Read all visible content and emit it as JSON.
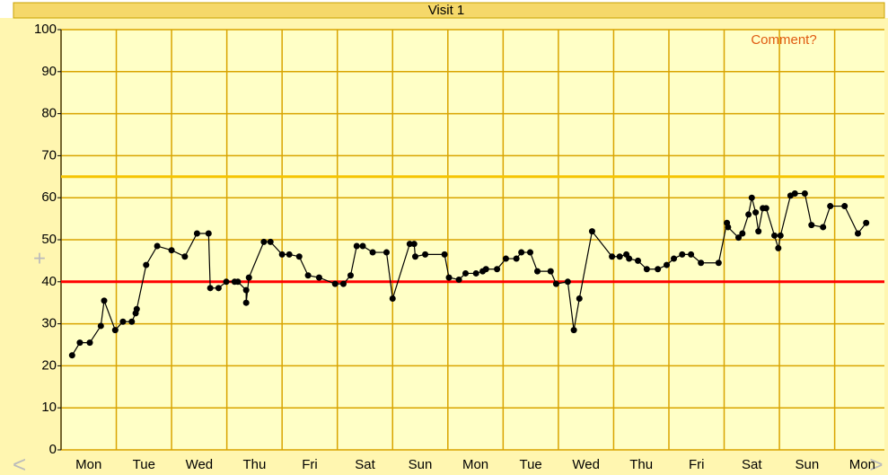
{
  "chart_data": {
    "type": "line",
    "title": "Visit 1",
    "annotation": "Comment?",
    "annotation_color": "#e05a10",
    "series": [
      {
        "color": "#000000",
        "x": [
          0.2,
          0.34,
          0.52,
          0.72,
          0.78,
          0.98,
          1.12,
          1.28,
          1.35,
          1.37,
          1.54,
          1.74,
          2.0,
          2.24,
          2.46,
          2.67,
          2.7,
          2.85,
          2.99,
          3.14,
          3.2,
          3.35,
          3.35,
          3.4,
          3.67,
          3.79,
          4.0,
          4.13,
          4.31,
          4.47,
          4.67,
          4.96,
          5.11,
          5.24,
          5.35,
          5.46,
          5.64,
          5.89,
          6.0,
          6.31,
          6.39,
          6.41,
          6.59,
          6.94,
          7.02,
          7.2,
          7.32,
          7.51,
          7.63,
          7.69,
          7.89,
          8.05,
          8.24,
          8.33,
          8.49,
          8.62,
          8.86,
          8.96,
          9.17,
          9.28,
          9.38,
          9.61,
          9.97,
          10.11,
          10.23,
          10.28,
          10.44,
          10.6,
          10.8,
          10.96,
          11.09,
          11.24,
          11.4,
          11.58,
          11.9,
          12.05,
          12.07,
          12.26,
          12.33,
          12.44,
          12.5,
          12.57,
          12.62,
          12.7,
          12.76,
          12.91,
          12.98,
          13.02,
          13.2,
          13.28,
          13.46,
          13.58,
          13.79,
          13.92,
          14.18,
          14.42,
          14.57
        ],
        "values": [
          22.5,
          25.5,
          25.5,
          29.5,
          35.5,
          28.5,
          30.5,
          30.5,
          32.5,
          33.5,
          44,
          48.5,
          47.5,
          46,
          51.5,
          51.5,
          38.5,
          38.5,
          40,
          40,
          40,
          38,
          35,
          41,
          49.5,
          49.5,
          46.5,
          46.5,
          46,
          41.5,
          41,
          39.5,
          39.5,
          41.5,
          48.5,
          48.5,
          47,
          47,
          36,
          49,
          49,
          46,
          46.5,
          46.5,
          41,
          40.5,
          42,
          42,
          42.5,
          43,
          43,
          45.5,
          45.5,
          47,
          47,
          42.5,
          42.5,
          39.5,
          40,
          28.5,
          36,
          52,
          46,
          46,
          46.5,
          45.5,
          45,
          43,
          43,
          44,
          45.5,
          46.5,
          46.5,
          44.5,
          44.5,
          54,
          53,
          50.5,
          51.5,
          56,
          60,
          56.5,
          52,
          57.5,
          57.5,
          51,
          48,
          51,
          60.5,
          61,
          61,
          53.5,
          53,
          58,
          58,
          51.5,
          54
        ]
      }
    ],
    "xlim": [
      0,
      14.9
    ],
    "xticks": [
      {
        "value": 0.5,
        "label": "Mon"
      },
      {
        "value": 1.5,
        "label": "Tue"
      },
      {
        "value": 2.5,
        "label": "Wed"
      },
      {
        "value": 3.5,
        "label": "Thu"
      },
      {
        "value": 4.5,
        "label": "Fri"
      },
      {
        "value": 5.5,
        "label": "Sat"
      },
      {
        "value": 6.5,
        "label": "Sun"
      },
      {
        "value": 7.5,
        "label": "Mon"
      },
      {
        "value": 8.5,
        "label": "Tue"
      },
      {
        "value": 9.5,
        "label": "Wed"
      },
      {
        "value": 10.5,
        "label": "Thu"
      },
      {
        "value": 11.5,
        "label": "Fri"
      },
      {
        "value": 12.5,
        "label": "Sat"
      },
      {
        "value": 13.5,
        "label": "Sun"
      },
      {
        "value": 14.5,
        "label": "Mon"
      }
    ],
    "ylim": [
      0,
      100
    ],
    "yticks": [
      0,
      10,
      20,
      30,
      40,
      50,
      60,
      70,
      80,
      90,
      100
    ],
    "grid": true,
    "grid_color": "#d9a400",
    "reference_lines": [
      {
        "value": 65,
        "color": "#f5c400"
      },
      {
        "value": 40,
        "color": "#ff0000"
      }
    ]
  }
}
